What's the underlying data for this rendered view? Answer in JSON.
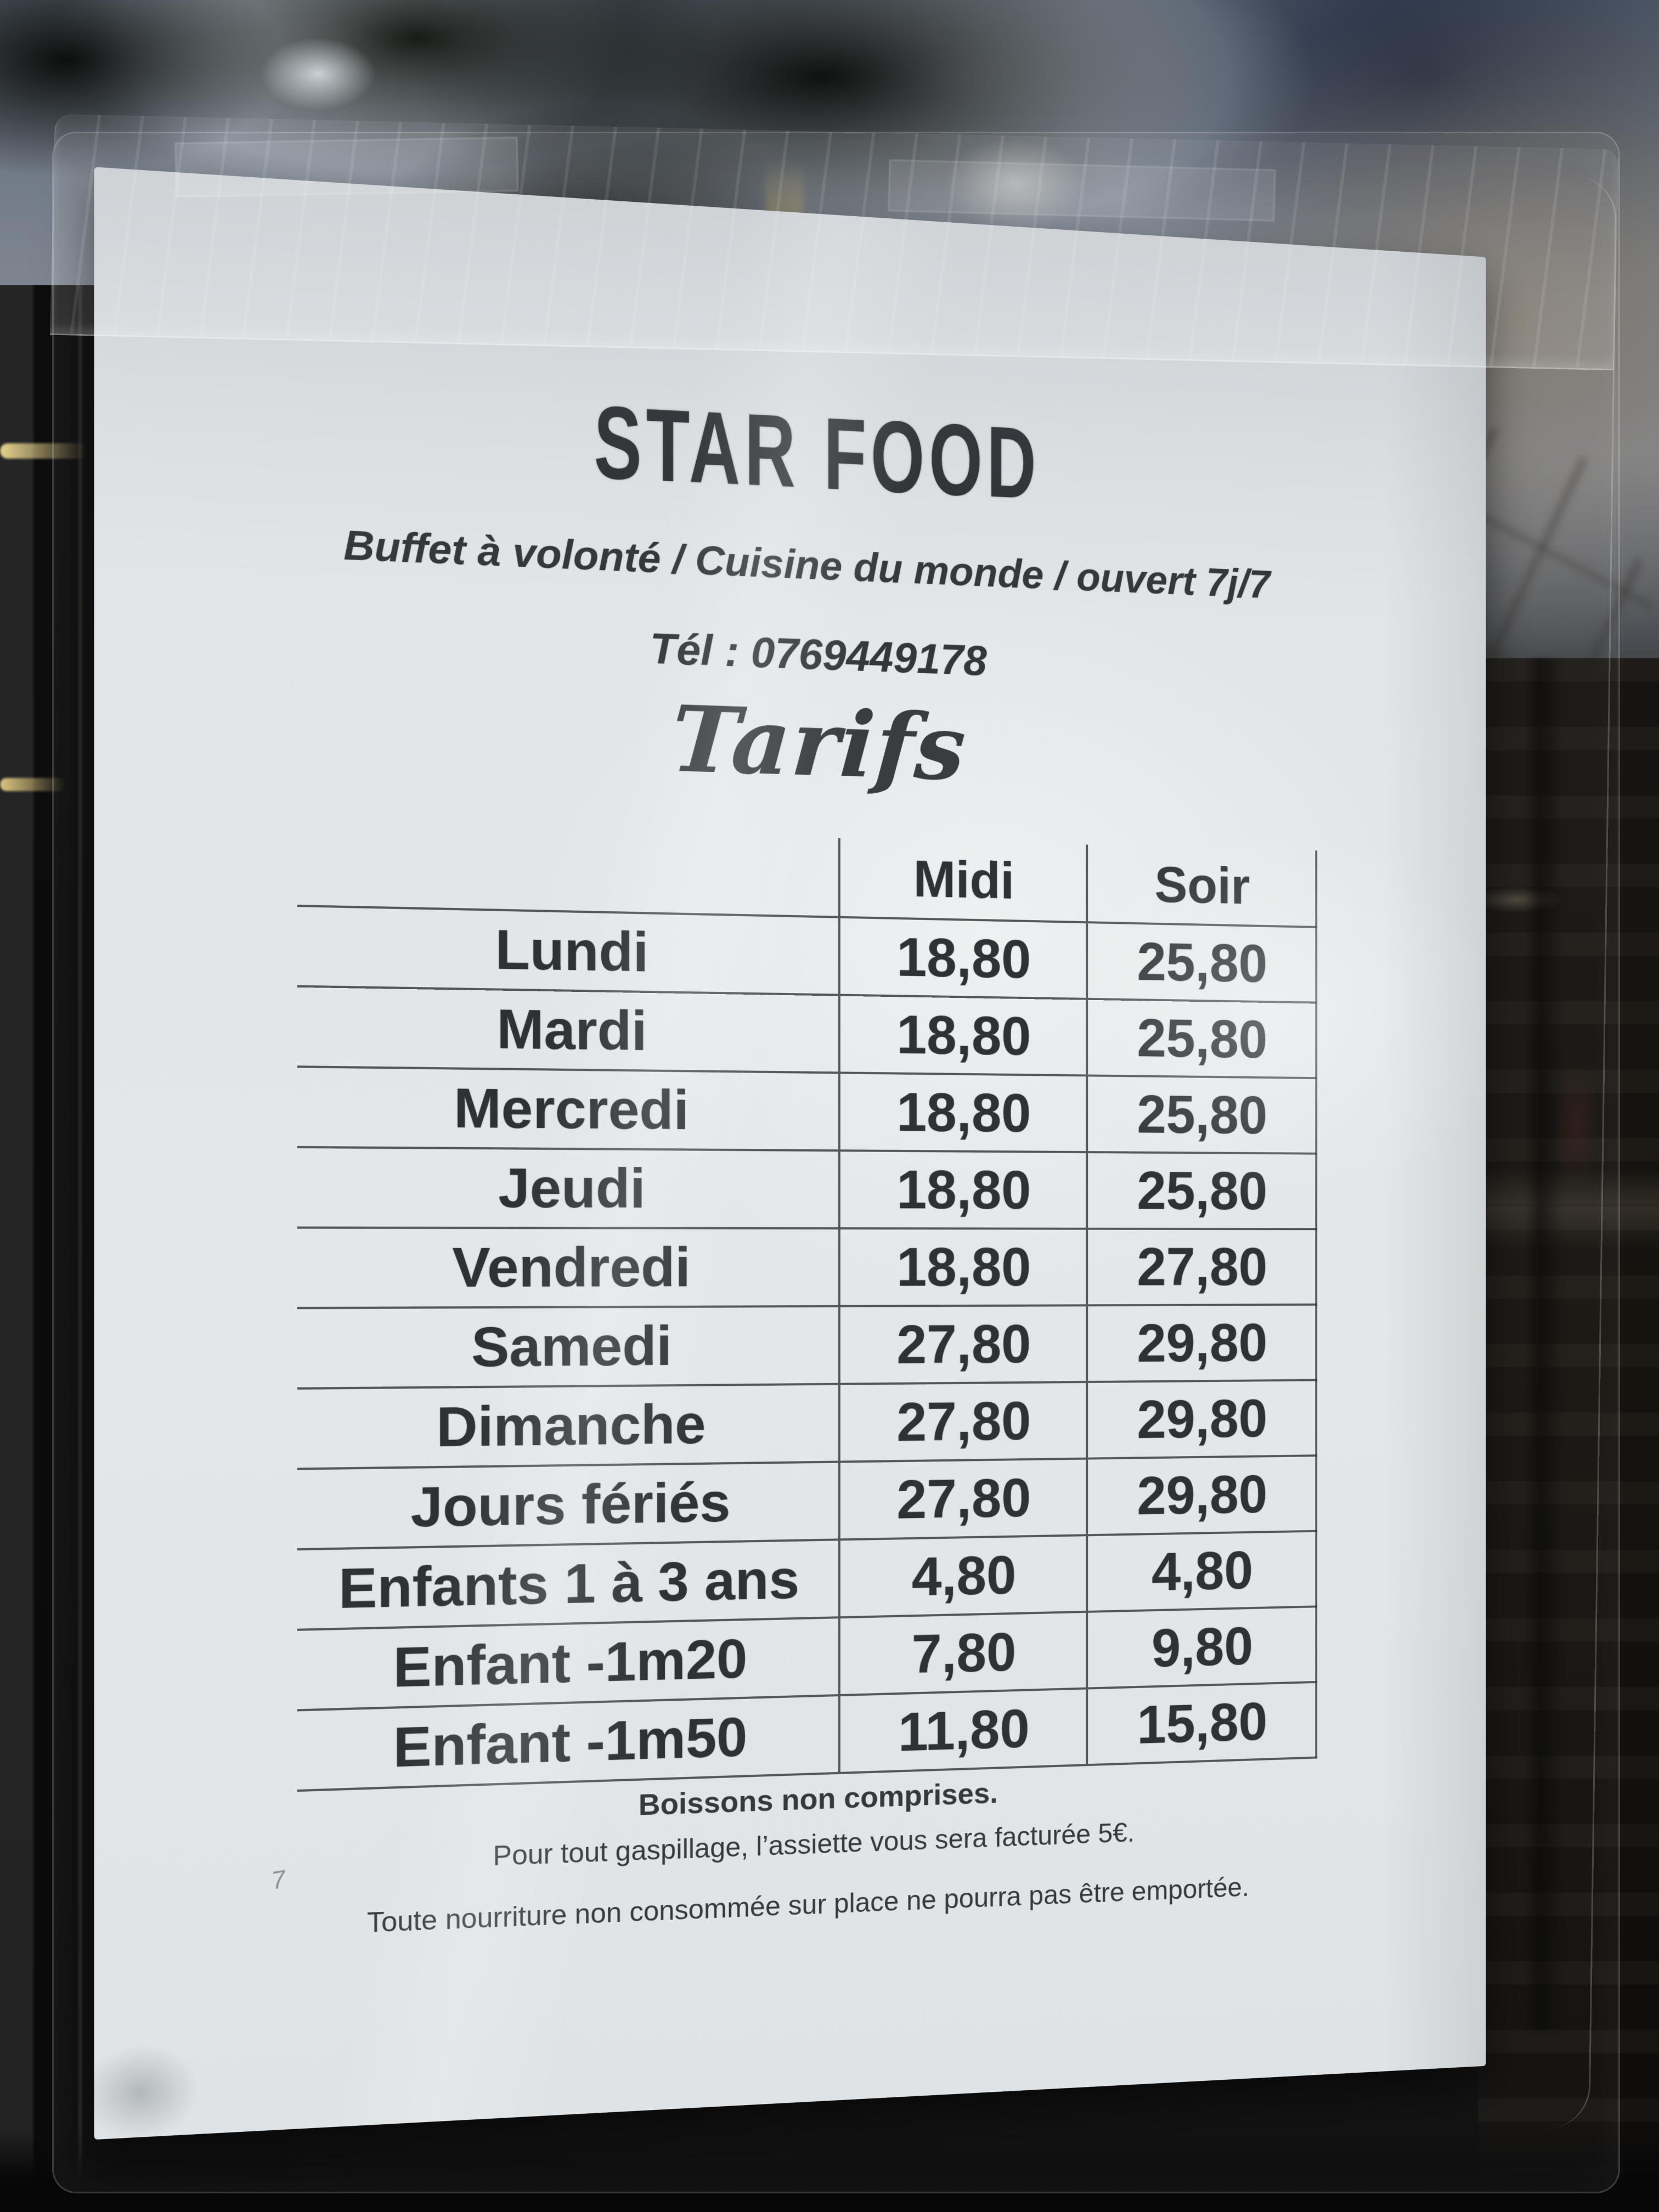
{
  "sign": {
    "title": "STAR FOOD",
    "subtitle": "Buffet à volonté / Cuisine du monde / ouvert 7j/7",
    "phone": "Tél : 0769449178",
    "section_title": "Tarifs",
    "table": {
      "columns": [
        "Midi",
        "Soir"
      ],
      "rows": [
        {
          "label": "Lundi",
          "midi": "18,80",
          "soir": "25,80"
        },
        {
          "label": "Mardi",
          "midi": "18,80",
          "soir": "25,80"
        },
        {
          "label": "Mercredi",
          "midi": "18,80",
          "soir": "25,80"
        },
        {
          "label": "Jeudi",
          "midi": "18,80",
          "soir": "25,80"
        },
        {
          "label": "Vendredi",
          "midi": "18,80",
          "soir": "27,80"
        },
        {
          "label": "Samedi",
          "midi": "27,80",
          "soir": "29,80"
        },
        {
          "label": "Dimanche",
          "midi": "27,80",
          "soir": "29,80"
        },
        {
          "label": "Jours fériés",
          "midi": "27,80",
          "soir": "29,80"
        },
        {
          "label": "Enfants 1 à 3 ans",
          "midi": "4,80",
          "soir": "4,80"
        },
        {
          "label": "Enfant -1m20",
          "midi": "7,80",
          "soir": "9,80"
        },
        {
          "label": "Enfant -1m50",
          "midi": "11,80",
          "soir": "15,80"
        }
      ]
    },
    "note": "Boissons non comprises.",
    "footnotes": [
      "Pour tout gaspillage, l’assiette vous sera facturée 5€.",
      "Toute nourriture non consommée sur place ne pourra pas être emportée."
    ],
    "handwriting": "7"
  },
  "colors": {
    "paper": "#e2e5e7",
    "ink": "#313437",
    "table_line": "#343639",
    "window_dark": "#0b0b0c",
    "sky_grey_blue": "#7e8894",
    "sky_navy": "#1a2440",
    "cloud_brown": "#7e766a",
    "gold_reflection": "#c9ab5c"
  }
}
